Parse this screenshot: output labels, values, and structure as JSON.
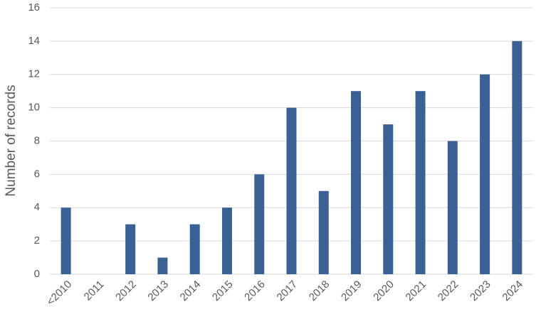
{
  "chart_data": {
    "type": "bar",
    "y_label": "Number of records",
    "categories": [
      "<2010",
      "2011",
      "2012",
      "2013",
      "2014",
      "2015",
      "2016",
      "2017",
      "2018",
      "2019",
      "2020",
      "2021",
      "2022",
      "2023",
      "2024"
    ],
    "values": [
      4,
      0,
      3,
      1,
      3,
      4,
      6,
      10,
      5,
      11,
      9,
      11,
      8,
      12,
      14
    ],
    "color": "#3a6193",
    "ylim": [
      0,
      16
    ],
    "yticks": [
      0,
      2,
      4,
      6,
      8,
      10,
      12,
      14,
      16
    ],
    "grid": true
  }
}
